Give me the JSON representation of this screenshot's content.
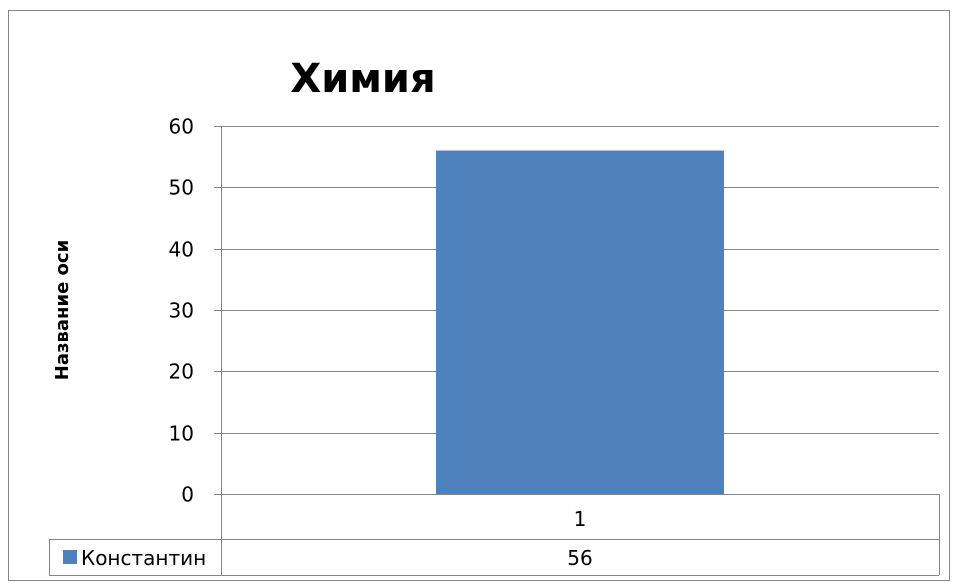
{
  "chart_data": {
    "type": "bar",
    "title": "Химия",
    "ylabel": "Название оси",
    "xlabel": "",
    "categories": [
      "1"
    ],
    "series": [
      {
        "name": "Константин",
        "values": [
          56
        ],
        "color": "#4f81bd"
      }
    ],
    "ylim": [
      0,
      60
    ],
    "yticks": [
      0,
      10,
      20,
      30,
      40,
      50,
      60
    ],
    "grid": true,
    "legend": "data-table-left",
    "data_table": true
  },
  "colors": {
    "gridline": "#868686",
    "frame": "#868686",
    "bar": "#4f81bd"
  }
}
